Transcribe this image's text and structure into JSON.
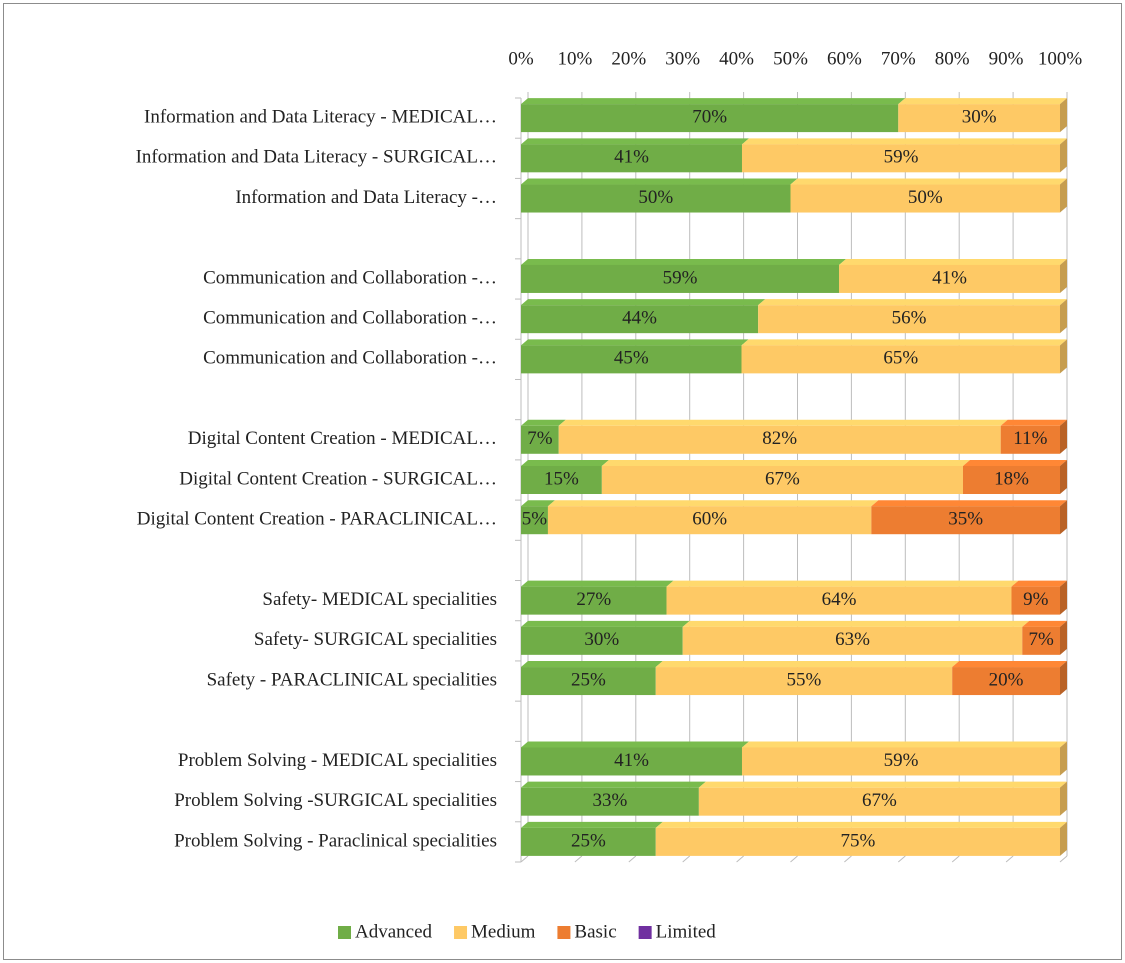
{
  "chart_data": {
    "type": "bar",
    "orientation": "horizontal",
    "stacking": "percent",
    "categories": [
      "Information and Data Literacy - MEDICAL…",
      "Information and Data Literacy - SURGICAL…",
      "Information and Data Literacy -…",
      null,
      "Communication and Collaboration -…",
      "Communication and Collaboration -…",
      "Communication and Collaboration -…",
      null,
      "Digital Content Creation - MEDICAL…",
      "Digital Content Creation - SURGICAL…",
      "Digital Content Creation - PARACLINICAL…",
      null,
      "Safety- MEDICAL specialities",
      "Safety- SURGICAL specialities",
      "Safety - PARACLINICAL specialities",
      null,
      "Problem Solving - MEDICAL specialities",
      "Problem Solving -SURGICAL specialities",
      "Problem Solving - Paraclinical specialities"
    ],
    "series": [
      {
        "name": "Advanced",
        "color": "#70ad47",
        "values": [
          70,
          41,
          50,
          null,
          59,
          44,
          45,
          null,
          7,
          15,
          5,
          null,
          27,
          30,
          25,
          null,
          41,
          33,
          25
        ],
        "value_labels": [
          "70%",
          "41%",
          "50%",
          null,
          "59%",
          "44%",
          "45%",
          null,
          "7%",
          "15%",
          "5%",
          null,
          "27%",
          "30%",
          "25%",
          null,
          "41%",
          "33%",
          "25%"
        ]
      },
      {
        "name": "Medium",
        "color": "#fec965",
        "values": [
          30,
          59,
          50,
          null,
          41,
          56,
          65,
          null,
          82,
          67,
          60,
          null,
          64,
          63,
          55,
          null,
          59,
          67,
          75
        ],
        "value_labels": [
          "30%",
          "59%",
          "50%",
          null,
          "41%",
          "56%",
          "65%",
          null,
          "82%",
          "67%",
          "60%",
          null,
          "64%",
          "63%",
          "55%",
          null,
          "59%",
          "67%",
          "75%"
        ]
      },
      {
        "name": "Basic",
        "color": "#ed7d31",
        "values": [
          null,
          null,
          null,
          null,
          null,
          null,
          null,
          null,
          11,
          18,
          35,
          null,
          9,
          7,
          20,
          null,
          null,
          null,
          null
        ],
        "value_labels": [
          null,
          null,
          null,
          null,
          null,
          null,
          null,
          null,
          "11%",
          "18%",
          "35%",
          null,
          "9%",
          "7%",
          "20%",
          null,
          null,
          null,
          null
        ]
      },
      {
        "name": "Limited",
        "color": "#7030a0",
        "values": [
          null,
          null,
          null,
          null,
          null,
          null,
          null,
          null,
          null,
          null,
          null,
          null,
          null,
          null,
          null,
          null,
          null,
          null,
          null
        ]
      }
    ],
    "xlim": [
      0,
      100
    ],
    "xticks": [
      {
        "value": 0,
        "label": "0%"
      },
      {
        "value": 10,
        "label": "10%"
      },
      {
        "value": 20,
        "label": "20%"
      },
      {
        "value": 30,
        "label": "30%"
      },
      {
        "value": 40,
        "label": "40%"
      },
      {
        "value": 50,
        "label": "50%"
      },
      {
        "value": 60,
        "label": "60%"
      },
      {
        "value": 70,
        "label": "70%"
      },
      {
        "value": 80,
        "label": "80%"
      },
      {
        "value": 90,
        "label": "90%"
      },
      {
        "value": 100,
        "label": "100%"
      }
    ],
    "grid": true,
    "legend": "bottom"
  }
}
